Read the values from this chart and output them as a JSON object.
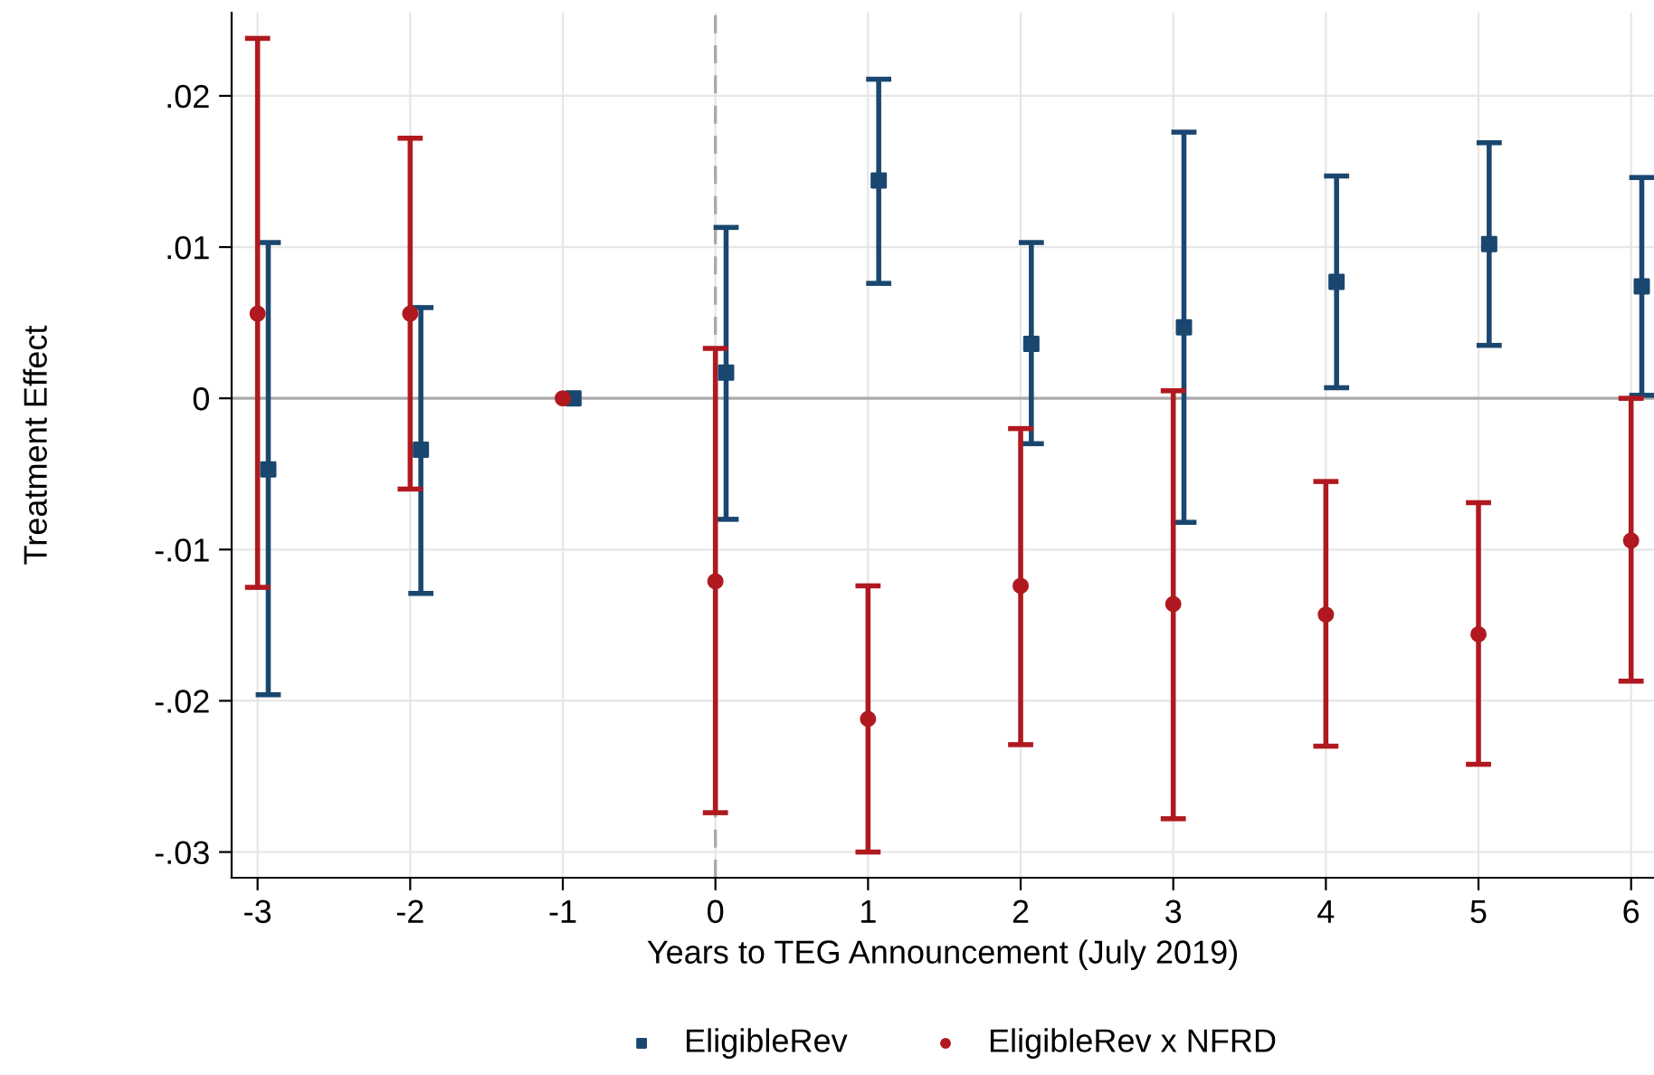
{
  "chart_data": {
    "type": "scatter",
    "xlabel": "Years to TEG Announcement (July 2019)",
    "ylabel": "Treatment Effect",
    "xlim": [
      -3.17,
      6.15
    ],
    "ylim": [
      -0.0317,
      0.0255
    ],
    "xticks": [
      -3,
      -2,
      -1,
      0,
      1,
      2,
      3,
      4,
      5,
      6
    ],
    "yticks": [
      {
        "value": -0.03,
        "label": "-.03"
      },
      {
        "value": -0.02,
        "label": "-.02"
      },
      {
        "value": -0.01,
        "label": "-.01"
      },
      {
        "value": 0,
        "label": "0"
      },
      {
        "value": 0.01,
        "label": ".01"
      },
      {
        "value": 0.02,
        "label": ".02"
      }
    ],
    "grid": true,
    "legend": "bottom",
    "ref_lines": [
      {
        "axis": "y",
        "value": 0,
        "color": "#aaaaaa",
        "line_style": "solid"
      },
      {
        "axis": "x",
        "value": 0,
        "color": "#aaaaaa",
        "line_style": "dashed"
      }
    ],
    "series": [
      {
        "name": "EligibleRev",
        "color": "#1a476f",
        "marker": "square",
        "x": [
          -2.93,
          -1.93,
          -0.93,
          0.07,
          1.07,
          2.07,
          3.07,
          4.07,
          5.07,
          6.07
        ],
        "values": [
          -0.0047,
          -0.0034,
          0,
          0.0017,
          0.0144,
          0.0036,
          0.0047,
          0.0077,
          0.0102,
          0.0074
        ],
        "errors": [
          [
            -0.0196,
            0.0103
          ],
          [
            -0.0129,
            0.006
          ],
          null,
          [
            -0.008,
            0.0113
          ],
          [
            0.0076,
            0.0211
          ],
          [
            -0.003,
            0.0103
          ],
          [
            -0.0082,
            0.0176
          ],
          [
            0.0007,
            0.0147
          ],
          [
            0.0035,
            0.0169
          ],
          [
            0.0002,
            0.0146
          ]
        ]
      },
      {
        "name": "EligibleRev x NFRD",
        "color": "#b0191f",
        "marker": "circle",
        "x": [
          -3,
          -2,
          -1,
          0,
          1,
          2,
          3,
          4,
          5,
          6
        ],
        "values": [
          0.0056,
          0.0056,
          0,
          -0.0121,
          -0.0212,
          -0.0124,
          -0.0136,
          -0.0143,
          -0.0156,
          -0.0094
        ],
        "errors": [
          [
            -0.0125,
            0.0238
          ],
          [
            -0.006,
            0.0172
          ],
          null,
          [
            -0.0274,
            0.0033
          ],
          [
            -0.03,
            -0.0124
          ],
          [
            -0.0229,
            -0.002
          ],
          [
            -0.0278,
            0.0005
          ],
          [
            -0.023,
            -0.0055
          ],
          [
            -0.0242,
            -0.0069
          ],
          [
            -0.0187,
            0.0
          ]
        ]
      }
    ]
  }
}
